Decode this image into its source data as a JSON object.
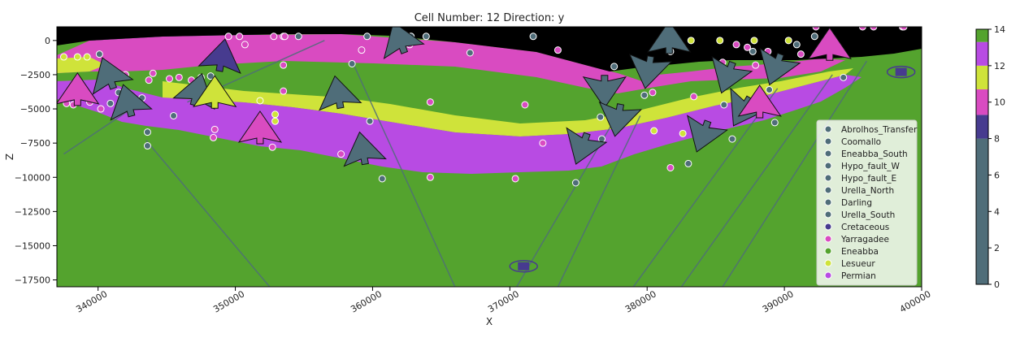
{
  "chart_data": {
    "type": "scatter",
    "title": "Cell Number: 12 Direction: y",
    "xlabel": "X",
    "ylabel": "Z",
    "xlim": [
      337000,
      400000
    ],
    "ylim": [
      -18000,
      1000
    ],
    "x_ticks": [
      340000,
      350000,
      360000,
      370000,
      380000,
      390000,
      400000
    ],
    "x_tick_labels": [
      "340000",
      "350000",
      "360000",
      "370000",
      "380000",
      "390000",
      "400000"
    ],
    "y_ticks": [
      0,
      -2500,
      -5000,
      -7500,
      -10000,
      -12500,
      -15000,
      -17500
    ],
    "y_tick_labels": [
      "0",
      "−2500",
      "−5000",
      "−7500",
      "−10000",
      "−12500",
      "−15000",
      "−17500"
    ],
    "legend_position": "lower-right",
    "legend": [
      {
        "name": "Abrolhos_Transfer",
        "color": "#4f6d79"
      },
      {
        "name": "Coomallo",
        "color": "#4f6d79"
      },
      {
        "name": "Eneabba_South",
        "color": "#4f6d79"
      },
      {
        "name": "Hypo_fault_W",
        "color": "#4f6d79"
      },
      {
        "name": "Hypo_fault_E",
        "color": "#4f6d79"
      },
      {
        "name": "Urella_North",
        "color": "#4f6d79"
      },
      {
        "name": "Darling",
        "color": "#4f6d79"
      },
      {
        "name": "Urella_South",
        "color": "#4f6d79"
      },
      {
        "name": "Cretaceous",
        "color": "#473b8f"
      },
      {
        "name": "Yarragadee",
        "color": "#d94bc1"
      },
      {
        "name": "Eneabba",
        "color": "#54a32e"
      },
      {
        "name": "Lesueur",
        "color": "#cfe33a"
      },
      {
        "name": "Permian",
        "color": "#b84be3"
      }
    ],
    "colorbar": {
      "ticks": [
        "0",
        "2",
        "4",
        "6",
        "8",
        "10",
        "12",
        "14"
      ],
      "segments": [
        {
          "from": 0,
          "to": 8,
          "color": "#4f6d79"
        },
        {
          "from": 8,
          "to": 9.3,
          "color": "#473b8f"
        },
        {
          "from": 9.3,
          "to": 10.7,
          "color": "#d94bc1"
        },
        {
          "from": 10.7,
          "to": 12,
          "color": "#cfe33a"
        },
        {
          "from": 12,
          "to": 13.3,
          "color": "#b84be3"
        },
        {
          "from": 13.3,
          "to": 14,
          "color": "#54a32e"
        }
      ]
    },
    "surface_points": [
      {
        "x": 337500,
        "y": -1200,
        "unit": "Lesueur"
      },
      {
        "x": 338500,
        "y": -1200,
        "unit": "Lesueur"
      },
      {
        "x": 339200,
        "y": -1200,
        "unit": "Lesueur"
      },
      {
        "x": 340100,
        "y": -1000,
        "unit": "Abrolhos_Transfer"
      },
      {
        "x": 342000,
        "y": -2500,
        "unit": "Yarragadee"
      },
      {
        "x": 343700,
        "y": -2900,
        "unit": "Yarragadee"
      },
      {
        "x": 344000,
        "y": -2400,
        "unit": "Yarragadee"
      },
      {
        "x": 345200,
        "y": -2800,
        "unit": "Yarragadee"
      },
      {
        "x": 345900,
        "y": -2700,
        "unit": "Yarragadee"
      },
      {
        "x": 347500,
        "y": -2700,
        "unit": "Coomallo"
      },
      {
        "x": 348200,
        "y": -2600,
        "unit": "Coomallo"
      },
      {
        "x": 349500,
        "y": 300,
        "unit": "Yarragadee"
      },
      {
        "x": 350300,
        "y": 300,
        "unit": "Yarragadee"
      },
      {
        "x": 350700,
        "y": -300,
        "unit": "Yarragadee"
      },
      {
        "x": 352800,
        "y": 300,
        "unit": "Yarragadee"
      },
      {
        "x": 353500,
        "y": 300,
        "unit": "Yarragadee"
      },
      {
        "x": 353600,
        "y": 300,
        "unit": "Yarragadee"
      },
      {
        "x": 354600,
        "y": 300,
        "unit": "Coomallo"
      },
      {
        "x": 353500,
        "y": -1800,
        "unit": "Yarragadee"
      },
      {
        "x": 358500,
        "y": -1700,
        "unit": "Eneabba_South"
      },
      {
        "x": 359200,
        "y": -700,
        "unit": "Yarragadee"
      },
      {
        "x": 359600,
        "y": 300,
        "unit": "Coomallo"
      },
      {
        "x": 362800,
        "y": 300,
        "unit": "Coomallo"
      },
      {
        "x": 362700,
        "y": -300,
        "unit": "Yarragadee"
      },
      {
        "x": 363900,
        "y": 300,
        "unit": "Coomallo"
      },
      {
        "x": 367100,
        "y": -900,
        "unit": "Hypo_fault_W"
      },
      {
        "x": 371700,
        "y": 300,
        "unit": "Coomallo"
      },
      {
        "x": 373500,
        "y": -700,
        "unit": "Yarragadee"
      },
      {
        "x": 337700,
        "y": -4600,
        "unit": "Yarragadee"
      },
      {
        "x": 338200,
        "y": -4700,
        "unit": "Yarragadee"
      },
      {
        "x": 339400,
        "y": -4500,
        "unit": "Yarragadee"
      },
      {
        "x": 340200,
        "y": -5000,
        "unit": "Yarragadee"
      },
      {
        "x": 340900,
        "y": -4600,
        "unit": "Coomallo"
      },
      {
        "x": 341500,
        "y": -3800,
        "unit": "Coomallo"
      },
      {
        "x": 342700,
        "y": -4300,
        "unit": "Lesueur"
      },
      {
        "x": 343200,
        "y": -4200,
        "unit": "Coomallo"
      },
      {
        "x": 343600,
        "y": -6700,
        "unit": "Coomallo"
      },
      {
        "x": 343600,
        "y": -7700,
        "unit": "Coomallo"
      },
      {
        "x": 345500,
        "y": -5500,
        "unit": "Coomallo"
      },
      {
        "x": 346800,
        "y": -2900,
        "unit": "Yarragadee"
      },
      {
        "x": 348500,
        "y": -6500,
        "unit": "Yarragadee"
      },
      {
        "x": 348400,
        "y": -7100,
        "unit": "Yarragadee"
      },
      {
        "x": 351800,
        "y": -4400,
        "unit": "Lesueur"
      },
      {
        "x": 352700,
        "y": -7800,
        "unit": "Yarragadee"
      },
      {
        "x": 352900,
        "y": -5400,
        "unit": "Lesueur"
      },
      {
        "x": 352900,
        "y": -5900,
        "unit": "Lesueur"
      },
      {
        "x": 353500,
        "y": -3700,
        "unit": "Yarragadee"
      },
      {
        "x": 357700,
        "y": -8300,
        "unit": "Yarragadee"
      },
      {
        "x": 359800,
        "y": -5900,
        "unit": "Coomallo"
      },
      {
        "x": 360700,
        "y": -10100,
        "unit": "Coomallo"
      },
      {
        "x": 364200,
        "y": -4500,
        "unit": "Yarragadee"
      },
      {
        "x": 364200,
        "y": -10000,
        "unit": "Yarragadee"
      },
      {
        "x": 370400,
        "y": -10100,
        "unit": "Yarragadee"
      },
      {
        "x": 371100,
        "y": -4700,
        "unit": "Yarragadee"
      },
      {
        "x": 372400,
        "y": -7500,
        "unit": "Yarragadee"
      },
      {
        "x": 374800,
        "y": -10400,
        "unit": "Coomallo"
      },
      {
        "x": 376600,
        "y": -5600,
        "unit": "Coomallo"
      },
      {
        "x": 376700,
        "y": -7200,
        "unit": "Coomallo"
      },
      {
        "x": 377600,
        "y": -1900,
        "unit": "Coomallo"
      },
      {
        "x": 379800,
        "y": -4000,
        "unit": "Coomallo"
      },
      {
        "x": 380400,
        "y": -3800,
        "unit": "Yarragadee"
      },
      {
        "x": 380500,
        "y": -6600,
        "unit": "Lesueur"
      },
      {
        "x": 381700,
        "y": -800,
        "unit": "Coomallo"
      },
      {
        "x": 381700,
        "y": -9300,
        "unit": "Yarragadee"
      },
      {
        "x": 382600,
        "y": -6800,
        "unit": "Lesueur"
      },
      {
        "x": 383000,
        "y": -9000,
        "unit": "Coomallo"
      },
      {
        "x": 383200,
        "y": 0,
        "unit": "Lesueur"
      },
      {
        "x": 383400,
        "y": -4100,
        "unit": "Yarragadee"
      },
      {
        "x": 385300,
        "y": 0,
        "unit": "Lesueur"
      },
      {
        "x": 385500,
        "y": -1600,
        "unit": "Yarragadee"
      },
      {
        "x": 385600,
        "y": -4700,
        "unit": "Coomallo"
      },
      {
        "x": 386200,
        "y": -7200,
        "unit": "Coomallo"
      },
      {
        "x": 386500,
        "y": -300,
        "unit": "Yarragadee"
      },
      {
        "x": 387300,
        "y": -500,
        "unit": "Yarragadee"
      },
      {
        "x": 387700,
        "y": -800,
        "unit": "Coomallo"
      },
      {
        "x": 387800,
        "y": 0,
        "unit": "Lesueur"
      },
      {
        "x": 387900,
        "y": -1800,
        "unit": "Yarragadee"
      },
      {
        "x": 388800,
        "y": -800,
        "unit": "Yarragadee"
      },
      {
        "x": 388900,
        "y": -3600,
        "unit": "Coomallo"
      },
      {
        "x": 389300,
        "y": -6000,
        "unit": "Coomallo"
      },
      {
        "x": 390300,
        "y": 0,
        "unit": "Lesueur"
      },
      {
        "x": 390900,
        "y": -300,
        "unit": "Coomallo"
      },
      {
        "x": 391200,
        "y": -1000,
        "unit": "Yarragadee"
      },
      {
        "x": 392200,
        "y": 300,
        "unit": "Coomallo"
      },
      {
        "x": 392300,
        "y": 1000,
        "unit": "Yarragadee"
      },
      {
        "x": 394300,
        "y": -2700,
        "unit": "Coomallo"
      },
      {
        "x": 395700,
        "y": 1000,
        "unit": "Yarragadee"
      },
      {
        "x": 396500,
        "y": 1000,
        "unit": "Yarragadee"
      },
      {
        "x": 398600,
        "y": 1000,
        "unit": "Yarragadee"
      },
      {
        "x": 398700,
        "y": 1000,
        "unit": "Yarragadee"
      }
    ],
    "orientations": [
      {
        "x": 338500,
        "y": -3800,
        "unit": "Yarragadee",
        "rot": 0
      },
      {
        "x": 340800,
        "y": -2600,
        "unit": "Abrolhos_Transfer",
        "rot": -20
      },
      {
        "x": 342200,
        "y": -4600,
        "unit": "Abrolhos_Transfer",
        "rot": -15
      },
      {
        "x": 349000,
        "y": -1300,
        "unit": "Cretaceous",
        "rot": 10
      },
      {
        "x": 347200,
        "y": -3800,
        "unit": "Coomallo",
        "rot": 15
      },
      {
        "x": 348500,
        "y": -4000,
        "unit": "Lesueur",
        "rot": 0
      },
      {
        "x": 351800,
        "y": -6600,
        "unit": "Yarragadee",
        "rot": 0
      },
      {
        "x": 357500,
        "y": -4000,
        "unit": "Eneabba_South",
        "rot": -10
      },
      {
        "x": 359300,
        "y": -8100,
        "unit": "Eneabba_South",
        "rot": -10
      },
      {
        "x": 362000,
        "y": 0,
        "unit": "Coomallo",
        "rot": -20
      },
      {
        "x": 375300,
        "y": -7700,
        "unit": "Hypo_fault_E",
        "rot": 200
      },
      {
        "x": 376900,
        "y": -3500,
        "unit": "Urella_North",
        "rot": 180
      },
      {
        "x": 377900,
        "y": -5600,
        "unit": "Urella_North",
        "rot": 190
      },
      {
        "x": 380100,
        "y": -2100,
        "unit": "Darling",
        "rot": 190
      },
      {
        "x": 381600,
        "y": 0,
        "unit": "Darling",
        "rot": 0
      },
      {
        "x": 384100,
        "y": -6800,
        "unit": "Urella_South",
        "rot": 200
      },
      {
        "x": 385900,
        "y": -2500,
        "unit": "Darling",
        "rot": 200
      },
      {
        "x": 387000,
        "y": -5000,
        "unit": "Urella_South",
        "rot": 210
      },
      {
        "x": 388200,
        "y": -4700,
        "unit": "Yarragadee",
        "rot": 0
      },
      {
        "x": 389400,
        "y": -1900,
        "unit": "Darling",
        "rot": 200
      },
      {
        "x": 393300,
        "y": -500,
        "unit": "Yarragadee",
        "rot": 0
      }
    ],
    "fault_lines": [
      {
        "name": "Abrolhos_Transfer",
        "x": [
          337500,
          343000
        ],
        "y": [
          -8300,
          -4600
        ]
      },
      {
        "name": "Coomallo",
        "x": [
          343500,
          352500
        ],
        "y": [
          -7300,
          -18000
        ]
      },
      {
        "name": "Eneabba_South",
        "x": [
          358500,
          366000
        ],
        "y": [
          -1500,
          -18000
        ]
      },
      {
        "name": "Hypo_fault_W",
        "x": [
          370500,
          377500
        ],
        "y": [
          -18000,
          -6000
        ]
      },
      {
        "name": "Hypo_fault_E",
        "x": [
          373500,
          379500
        ],
        "y": [
          -18000,
          -5500
        ]
      },
      {
        "name": "Urella_North",
        "x": [
          379000,
          389500
        ],
        "y": [
          -18000,
          -3500
        ]
      },
      {
        "name": "Darling",
        "x": [
          382500,
          393500
        ],
        "y": [
          -18000,
          -2500
        ]
      },
      {
        "name": "Urella_South",
        "x": [
          385500,
          396000
        ],
        "y": [
          -18000,
          -1500
        ]
      },
      {
        "name": "Coomallo",
        "x": [
          346500,
          356500
        ],
        "y": [
          -4500,
          0
        ]
      }
    ],
    "extra_markers": [
      {
        "x": 371000,
        "y": -16500,
        "unit": "Cretaceous"
      },
      {
        "x": 398500,
        "y": -2300,
        "unit": "Cretaceous"
      }
    ]
  }
}
